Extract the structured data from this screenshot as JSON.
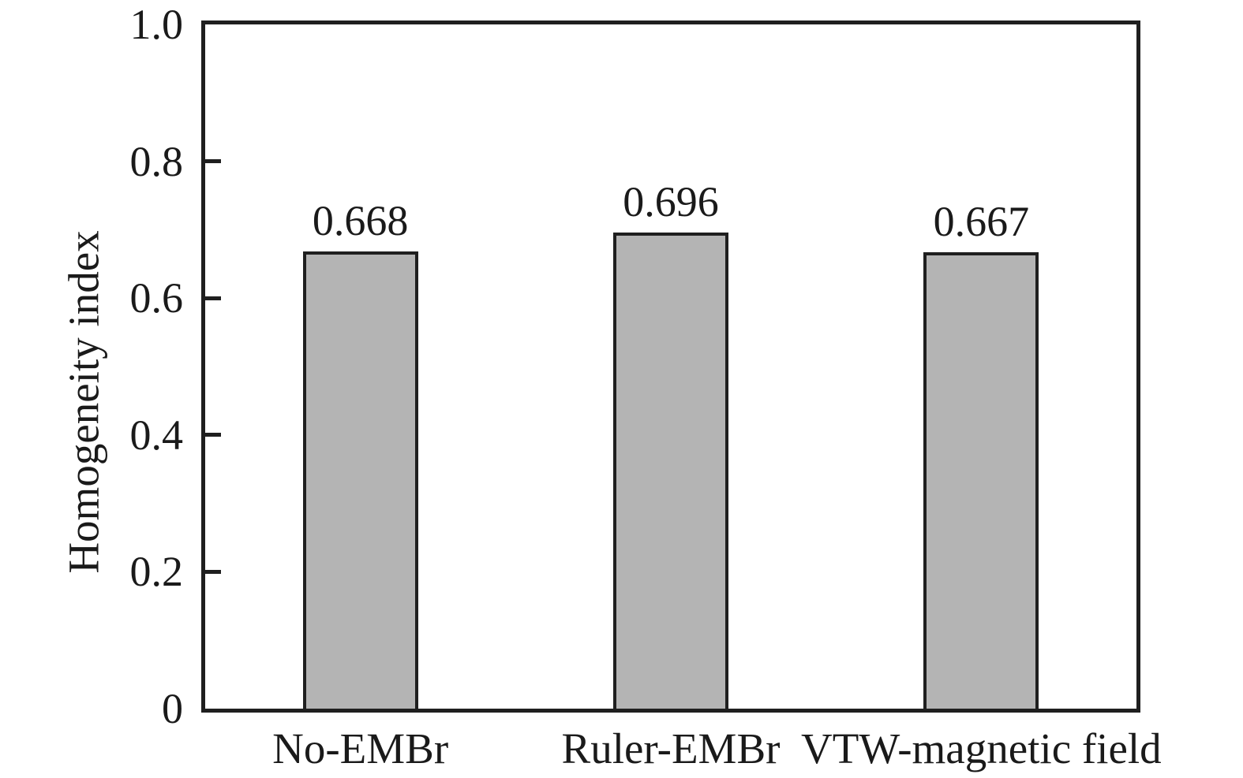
{
  "chart_data": {
    "type": "bar",
    "title": "",
    "categories": [
      "No-EMBr",
      "Ruler-EMBr",
      "VTW-magnetic field"
    ],
    "values": [
      0.668,
      0.696,
      0.667
    ],
    "value_labels": [
      "0.668",
      "0.696",
      "0.667"
    ],
    "xlabel": "",
    "ylabel": "Homogeneity index",
    "ylim": [
      0,
      1.0
    ],
    "yticks": [
      0,
      0.2,
      0.4,
      0.6,
      0.8,
      1.0
    ],
    "ytick_labels": [
      "0",
      "0.2",
      "0.4",
      "0.6",
      "0.8",
      "1.0"
    ],
    "grid": false,
    "legend": null,
    "frame": "box",
    "tick_direction": "in",
    "colors": {
      "bar_fill": "#b4b4b4",
      "bar_border": "#1f1f1f",
      "axis": "#1f1f1f",
      "text": "#1a1a1a",
      "background": "#ffffff"
    }
  }
}
